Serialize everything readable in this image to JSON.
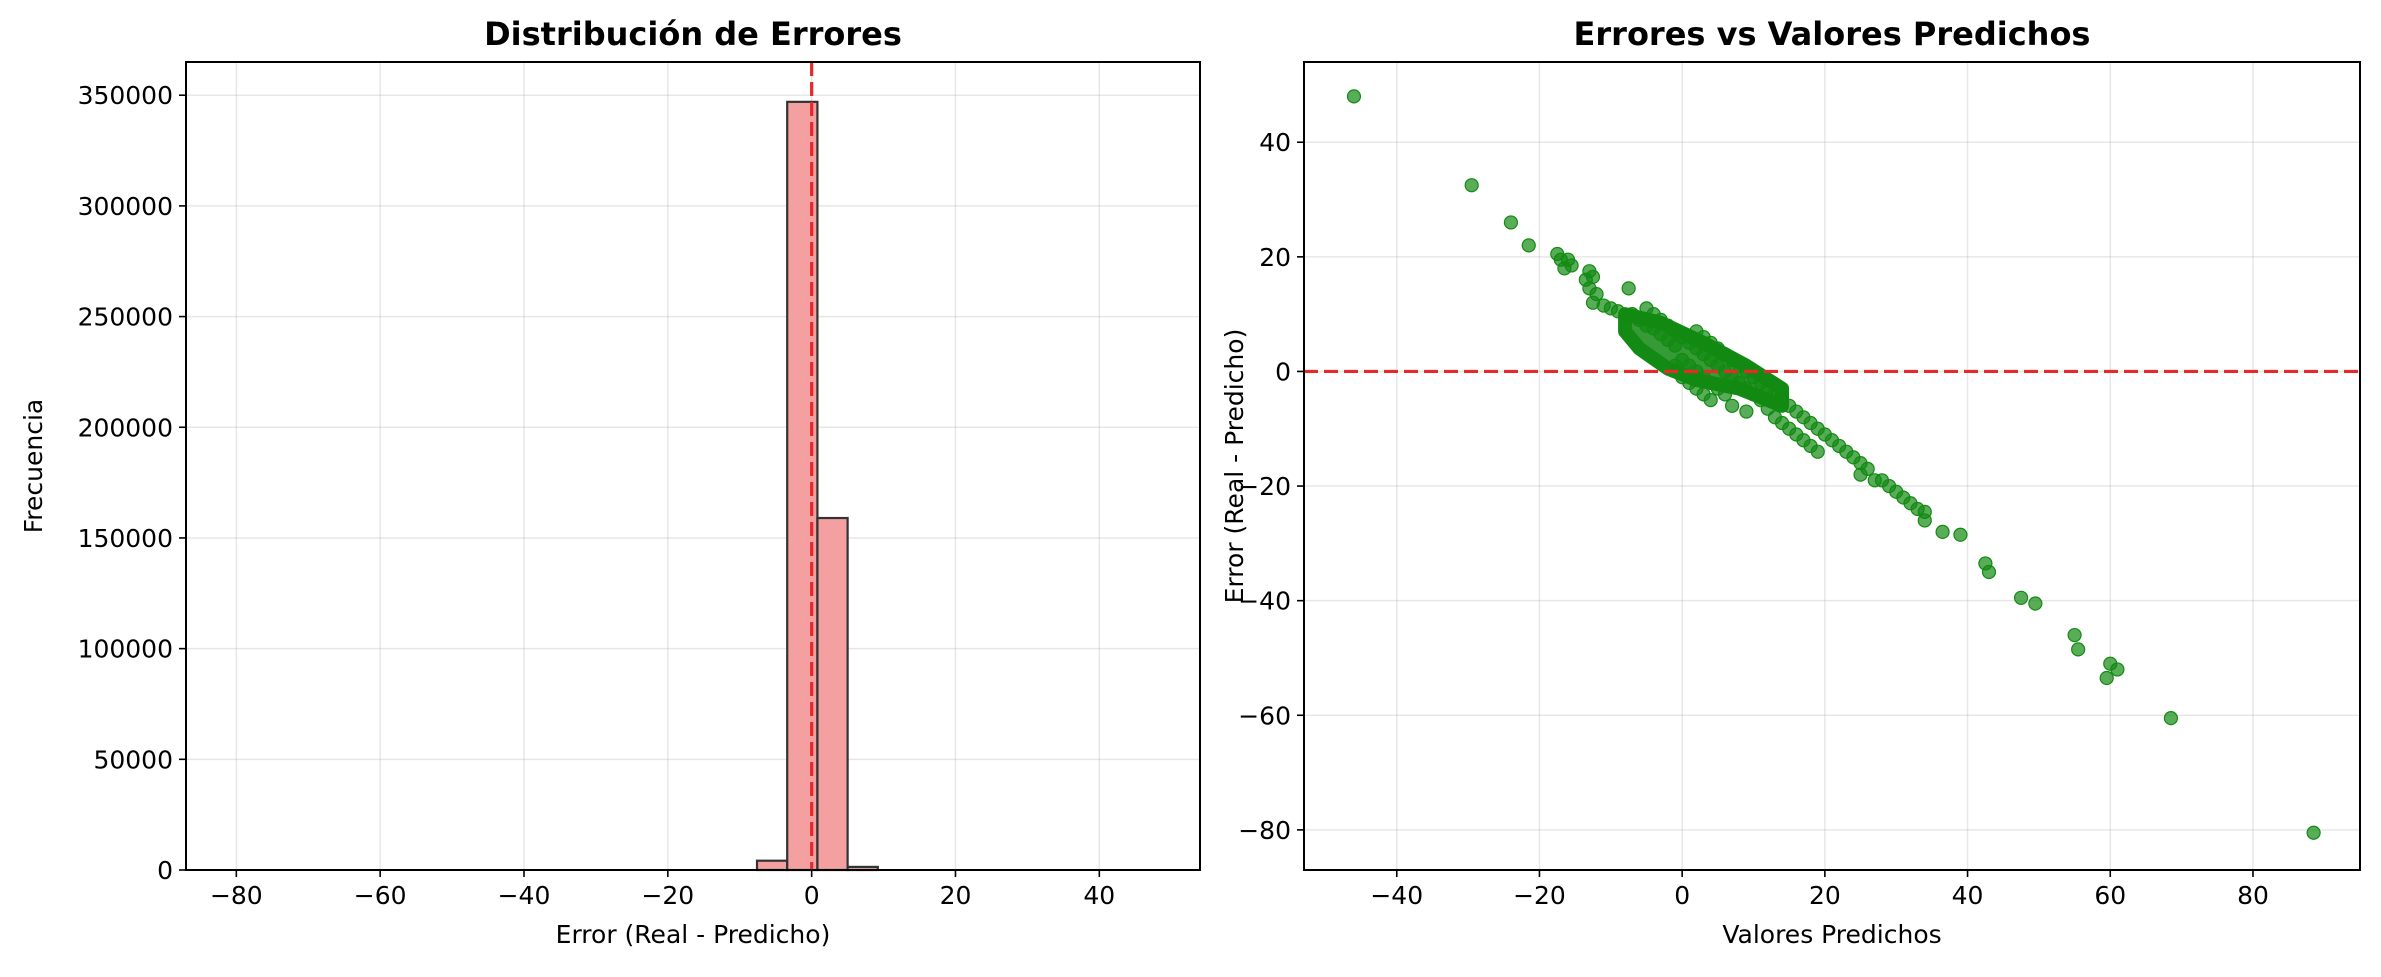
{
  "figure": {
    "background": "#ffffff"
  },
  "chart_data": [
    {
      "type": "bar",
      "title": "Distribución de Errores",
      "xlabel": "Error (Real - Predicho)",
      "ylabel": "Frecuencia",
      "xlim": [
        -87,
        54
      ],
      "ylim": [
        0,
        365000
      ],
      "xticks": [
        -80,
        -60,
        -40,
        -20,
        0,
        20,
        40
      ],
      "xtick_labels": [
        "−80",
        "−60",
        "−40",
        "−20",
        "0",
        "20",
        "40"
      ],
      "yticks": [
        0,
        50000,
        100000,
        150000,
        200000,
        250000,
        300000,
        350000
      ],
      "ytick_labels": [
        "0",
        "50000",
        "100000",
        "150000",
        "200000",
        "250000",
        "300000",
        "350000"
      ],
      "grid": true,
      "bins": [
        {
          "x0": -7.6,
          "x1": -3.4,
          "count": 4200
        },
        {
          "x0": -3.4,
          "x1": 0.8,
          "count": 347000
        },
        {
          "x0": 0.8,
          "x1": 5.0,
          "count": 159000
        },
        {
          "x0": 5.0,
          "x1": 9.2,
          "count": 1400
        }
      ],
      "bar_color": "#f4a0a0",
      "edge_color": "#333333",
      "reference_line": {
        "orientation": "vertical",
        "value": 0,
        "color": "#e8282b",
        "style": "dashed"
      }
    },
    {
      "type": "scatter",
      "title": "Errores vs Valores Predichos",
      "xlabel": "Valores Predichos",
      "ylabel": "Error (Real - Predicho)",
      "xlim": [
        -53,
        95
      ],
      "ylim": [
        -87,
        54
      ],
      "xticks": [
        -40,
        -20,
        0,
        20,
        40,
        60,
        80
      ],
      "xtick_labels": [
        "−40",
        "−20",
        "0",
        "20",
        "40",
        "60",
        "80"
      ],
      "yticks": [
        -80,
        -60,
        -40,
        -20,
        0,
        20,
        40
      ],
      "ytick_labels": [
        "−80",
        "−60",
        "−40",
        "−20",
        "0",
        "20",
        "40"
      ],
      "grid": true,
      "point_color": "#138a13",
      "points": [
        [
          -46,
          48
        ],
        [
          -29.5,
          32.5
        ],
        [
          -24,
          26
        ],
        [
          -21.5,
          22
        ],
        [
          -17.5,
          20.5
        ],
        [
          -17,
          19.5
        ],
        [
          -16,
          19.5
        ],
        [
          -16.5,
          18
        ],
        [
          -15.5,
          18.5
        ],
        [
          -13,
          17.5
        ],
        [
          -13.5,
          16
        ],
        [
          -12.5,
          16.5
        ],
        [
          -13,
          14.5
        ],
        [
          -12,
          13.5
        ],
        [
          -12.5,
          12
        ],
        [
          -11,
          11.5
        ],
        [
          -10,
          11
        ],
        [
          -9,
          10.5
        ],
        [
          -7.5,
          14.5
        ],
        [
          -7,
          10
        ],
        [
          -8,
          9.5
        ],
        [
          -6,
          9
        ],
        [
          -5,
          8
        ],
        [
          -4,
          7.5
        ],
        [
          -3,
          6.5
        ],
        [
          -2,
          5.5
        ],
        [
          -1,
          4.5
        ],
        [
          -4,
          10
        ],
        [
          -5,
          11
        ],
        [
          -3,
          9
        ],
        [
          -2,
          8
        ],
        [
          -1,
          7
        ],
        [
          0,
          6
        ],
        [
          1,
          5
        ],
        [
          2,
          4
        ],
        [
          0,
          2
        ],
        [
          1,
          1
        ],
        [
          2,
          0
        ],
        [
          3,
          -1
        ],
        [
          4,
          -2
        ],
        [
          5,
          -3
        ],
        [
          6,
          -4
        ],
        [
          3,
          3
        ],
        [
          4,
          2
        ],
        [
          5,
          1
        ],
        [
          6,
          0
        ],
        [
          7,
          -1
        ],
        [
          8,
          -2
        ],
        [
          9,
          -3
        ],
        [
          10,
          -4
        ],
        [
          11,
          -5
        ],
        [
          2,
          7
        ],
        [
          3,
          6
        ],
        [
          4,
          5
        ],
        [
          5,
          4
        ],
        [
          6,
          3
        ],
        [
          7,
          2
        ],
        [
          8,
          1
        ],
        [
          9,
          0
        ],
        [
          10,
          -1
        ],
        [
          11,
          -2
        ],
        [
          12,
          -3
        ],
        [
          13,
          -4
        ],
        [
          14,
          -5
        ],
        [
          15,
          -6
        ],
        [
          16,
          -7
        ],
        [
          17,
          -8
        ],
        [
          18,
          -9
        ],
        [
          -1,
          1
        ],
        [
          0,
          -1
        ],
        [
          1,
          -2
        ],
        [
          2,
          -3
        ],
        [
          3,
          -4
        ],
        [
          4,
          -5
        ],
        [
          7,
          -6
        ],
        [
          9,
          -7
        ],
        [
          12,
          -6.5
        ],
        [
          13,
          -8
        ],
        [
          14,
          -9
        ],
        [
          15,
          -10
        ],
        [
          16,
          -11
        ],
        [
          17,
          -12
        ],
        [
          18,
          -13
        ],
        [
          19,
          -14
        ],
        [
          20,
          -11
        ],
        [
          21,
          -12
        ],
        [
          19,
          -10
        ],
        [
          22,
          -13
        ],
        [
          23,
          -14
        ],
        [
          24,
          -15
        ],
        [
          25,
          -16
        ],
        [
          26,
          -17
        ],
        [
          25,
          -18
        ],
        [
          27,
          -19
        ],
        [
          28,
          -19
        ],
        [
          29,
          -20
        ],
        [
          30,
          -21
        ],
        [
          31,
          -22
        ],
        [
          32,
          -23
        ],
        [
          33,
          -24
        ],
        [
          34,
          -24.5
        ],
        [
          34,
          -26
        ],
        [
          36.5,
          -28
        ],
        [
          39,
          -28.5
        ],
        [
          42.5,
          -33.5
        ],
        [
          43,
          -35
        ],
        [
          47.5,
          -39.5
        ],
        [
          49.5,
          -40.5
        ],
        [
          55,
          -46
        ],
        [
          55.5,
          -48.5
        ],
        [
          60,
          -51
        ],
        [
          61,
          -52
        ],
        [
          59.5,
          -53.5
        ],
        [
          68.5,
          -60.5
        ],
        [
          88.5,
          -80.5
        ]
      ],
      "core_band": [
        [
          -8,
          10
        ],
        [
          -3,
          8.5
        ],
        [
          3,
          5
        ],
        [
          9,
          1
        ],
        [
          14,
          -3
        ],
        [
          14,
          -6
        ],
        [
          8,
          -3
        ],
        [
          2,
          -1.5
        ],
        [
          -2,
          0.5
        ],
        [
          -6,
          4
        ],
        [
          -8,
          7
        ]
      ],
      "reference_line": {
        "orientation": "horizontal",
        "value": 0,
        "color": "#e8282b",
        "style": "dashed"
      }
    }
  ]
}
